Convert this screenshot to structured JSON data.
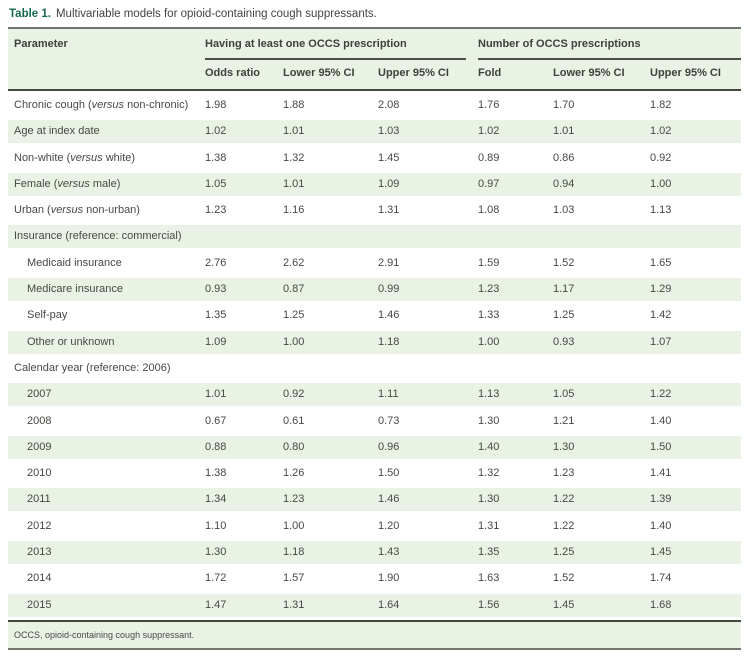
{
  "title": {
    "label": "Table 1.",
    "text": "Multivariable models for opioid-containing cough suppressants."
  },
  "table": {
    "param_header": "Parameter",
    "groups": [
      {
        "label": "Having at least one OCCS prescription",
        "cols": [
          "Odds ratio",
          "Lower 95% CI",
          "Upper 95% CI"
        ]
      },
      {
        "label": "Number of OCCS prescriptions",
        "cols": [
          "Fold",
          "Lower 95% CI",
          "Upper 95% CI"
        ]
      }
    ],
    "rows": [
      {
        "label": "Chronic cough (*versus* non-chronic)",
        "indent": false,
        "values": [
          "1.98",
          "1.88",
          "2.08",
          "1.76",
          "1.70",
          "1.82"
        ]
      },
      {
        "label": "Age at index date",
        "indent": false,
        "values": [
          "1.02",
          "1.01",
          "1.03",
          "1.02",
          "1.01",
          "1.02"
        ]
      },
      {
        "label": "Non-white (*versus* white)",
        "indent": false,
        "values": [
          "1.38",
          "1.32",
          "1.45",
          "0.89",
          "0.86",
          "0.92"
        ]
      },
      {
        "label": "Female (*versus* male)",
        "indent": false,
        "values": [
          "1.05",
          "1.01",
          "1.09",
          "0.97",
          "0.94",
          "1.00"
        ]
      },
      {
        "label": "Urban (*versus* non-urban)",
        "indent": false,
        "values": [
          "1.23",
          "1.16",
          "1.31",
          "1.08",
          "1.03",
          "1.13"
        ]
      },
      {
        "label": "Insurance (reference: commercial)",
        "indent": false,
        "values": []
      },
      {
        "label": "Medicaid insurance",
        "indent": true,
        "values": [
          "2.76",
          "2.62",
          "2.91",
          "1.59",
          "1.52",
          "1.65"
        ]
      },
      {
        "label": "Medicare insurance",
        "indent": true,
        "values": [
          "0.93",
          "0.87",
          "0.99",
          "1.23",
          "1.17",
          "1.29"
        ]
      },
      {
        "label": "Self-pay",
        "indent": true,
        "values": [
          "1.35",
          "1.25",
          "1.46",
          "1.33",
          "1.25",
          "1.42"
        ]
      },
      {
        "label": "Other or unknown",
        "indent": true,
        "values": [
          "1.09",
          "1.00",
          "1.18",
          "1.00",
          "0.93",
          "1.07"
        ]
      },
      {
        "label": "Calendar year (reference: 2006)",
        "indent": false,
        "values": []
      },
      {
        "label": "2007",
        "indent": true,
        "values": [
          "1.01",
          "0.92",
          "1.11",
          "1.13",
          "1.05",
          "1.22"
        ]
      },
      {
        "label": "2008",
        "indent": true,
        "values": [
          "0.67",
          "0.61",
          "0.73",
          "1.30",
          "1.21",
          "1.40"
        ]
      },
      {
        "label": "2009",
        "indent": true,
        "values": [
          "0.88",
          "0.80",
          "0.96",
          "1.40",
          "1.30",
          "1.50"
        ]
      },
      {
        "label": "2010",
        "indent": true,
        "values": [
          "1.38",
          "1.26",
          "1.50",
          "1.32",
          "1.23",
          "1.41"
        ]
      },
      {
        "label": "2011",
        "indent": true,
        "values": [
          "1.34",
          "1.23",
          "1.46",
          "1.30",
          "1.22",
          "1.39"
        ]
      },
      {
        "label": "2012",
        "indent": true,
        "values": [
          "1.10",
          "1.00",
          "1.20",
          "1.31",
          "1.22",
          "1.40"
        ]
      },
      {
        "label": "2013",
        "indent": true,
        "values": [
          "1.30",
          "1.18",
          "1.43",
          "1.35",
          "1.25",
          "1.45"
        ]
      },
      {
        "label": "2014",
        "indent": true,
        "values": [
          "1.72",
          "1.57",
          "1.90",
          "1.63",
          "1.52",
          "1.74"
        ]
      },
      {
        "label": "2015",
        "indent": true,
        "values": [
          "1.47",
          "1.31",
          "1.64",
          "1.56",
          "1.45",
          "1.68"
        ]
      }
    ]
  },
  "footnote": "OCCS, opioid-containing cough suppressant.",
  "colors": {
    "title_accent_green": "#17694c",
    "row_band_green": "#eaf2e5",
    "rule_dark": "#43483f",
    "text": "#454a43"
  }
}
